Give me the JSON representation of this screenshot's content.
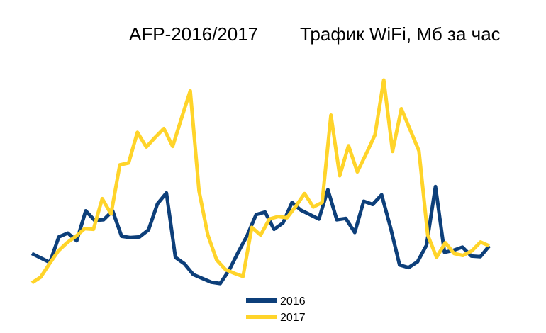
{
  "chart_data": {
    "type": "line",
    "title": "AFP-2016/2017",
    "subtitle": "Трафик WiFi, Мб за час",
    "xlabel": "",
    "ylabel": "",
    "grid": false,
    "axes_visible": false,
    "legend_position": "bottom-center",
    "ylim": [
      0,
      300
    ],
    "series": [
      {
        "name": "2016",
        "color": "#0D3F7A",
        "values": [
          48,
          41,
          34,
          74,
          80,
          68,
          115,
          100,
          101,
          115,
          75,
          73,
          74,
          85,
          126,
          143,
          42,
          32,
          15,
          9,
          3,
          1,
          22,
          50,
          76,
          109,
          113,
          86,
          96,
          128,
          116,
          109,
          102,
          148,
          101,
          103,
          81,
          130,
          125,
          140,
          88,
          30,
          26,
          35,
          61,
          153,
          50,
          53,
          58,
          44,
          43,
          60
        ]
      },
      {
        "name": "2017",
        "color": "#FFD42A",
        "values": [
          2,
          11,
          32,
          52,
          65,
          75,
          87,
          86,
          134,
          110,
          187,
          190,
          238,
          215,
          230,
          244,
          216,
          260,
          303,
          146,
          77,
          38,
          23,
          17,
          12,
          89,
          77,
          102,
          106,
          104,
          122,
          142,
          121,
          128,
          265,
          170,
          217,
          176,
          204,
          234,
          320,
          208,
          275,
          242,
          209,
          77,
          42,
          65,
          48,
          45,
          52,
          66,
          60
        ]
      }
    ]
  }
}
